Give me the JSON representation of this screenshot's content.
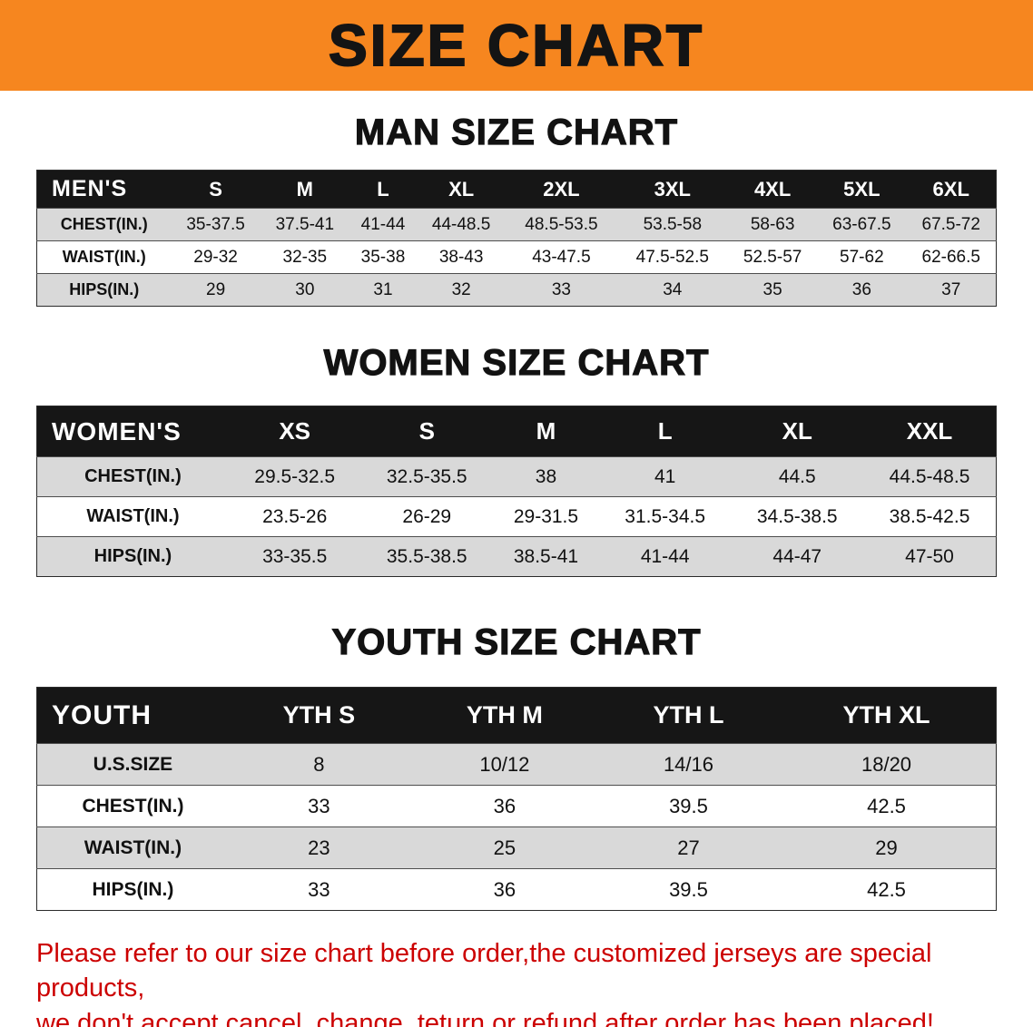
{
  "banner": {
    "title": "SIZE CHART",
    "bg_color": "#F6861F",
    "text_color": "#141414"
  },
  "sections": {
    "men": {
      "heading": "MAN SIZE CHART",
      "table": {
        "header": [
          "MEN'S",
          "S",
          "M",
          "L",
          "XL",
          "2XL",
          "3XL",
          "4XL",
          "5XL",
          "6XL"
        ],
        "rows": [
          [
            "CHEST(IN.)",
            "35-37.5",
            "37.5-41",
            "41-44",
            "44-48.5",
            "48.5-53.5",
            "53.5-58",
            "58-63",
            "63-67.5",
            "67.5-72"
          ],
          [
            "WAIST(IN.)",
            "29-32",
            "32-35",
            "35-38",
            "38-43",
            "43-47.5",
            "47.5-52.5",
            "52.5-57",
            "57-62",
            "62-66.5"
          ],
          [
            "HIPS(IN.)",
            "29",
            "30",
            "31",
            "32",
            "33",
            "34",
            "35",
            "36",
            "37"
          ]
        ]
      }
    },
    "women": {
      "heading": "WOMEN SIZE CHART",
      "table": {
        "header": [
          "WOMEN'S",
          "XS",
          "S",
          "M",
          "L",
          "XL",
          "XXL"
        ],
        "rows": [
          [
            "CHEST(IN.)",
            "29.5-32.5",
            "32.5-35.5",
            "38",
            "41",
            "44.5",
            "44.5-48.5"
          ],
          [
            "WAIST(IN.)",
            "23.5-26",
            "26-29",
            "29-31.5",
            "31.5-34.5",
            "34.5-38.5",
            "38.5-42.5"
          ],
          [
            "HIPS(IN.)",
            "33-35.5",
            "35.5-38.5",
            "38.5-41",
            "41-44",
            "44-47",
            "47-50"
          ]
        ]
      }
    },
    "youth": {
      "heading": "YOUTH SIZE CHART",
      "table": {
        "header": [
          "YOUTH",
          "YTH S",
          "YTH M",
          "YTH L",
          "YTH XL"
        ],
        "rows": [
          [
            "U.S.SIZE",
            "8",
            "10/12",
            "14/16",
            "18/20"
          ],
          [
            "CHEST(IN.)",
            "33",
            "36",
            "39.5",
            "42.5"
          ],
          [
            "WAIST(IN.)",
            "23",
            "25",
            "27",
            "29"
          ],
          [
            "HIPS(IN.)",
            "33",
            "36",
            "39.5",
            "42.5"
          ]
        ]
      }
    }
  },
  "disclaimer": {
    "line1": "Please refer to our size chart before order,the customized jerseys are special products,",
    "line2": "we don't accept cancel, change, teturn or refund after order has been placed!",
    "color": "#CC0000"
  }
}
